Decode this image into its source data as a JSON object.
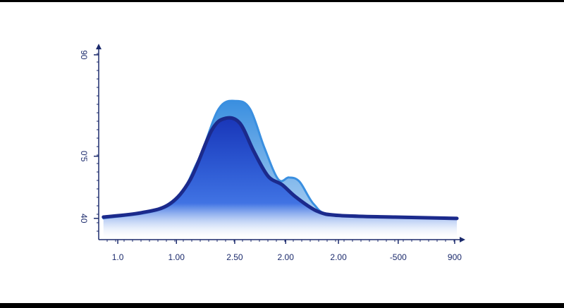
{
  "chart_data": {
    "type": "area",
    "xlim": [
      0,
      100
    ],
    "xticks": [
      {
        "value": 5.2,
        "label": "1.0"
      },
      {
        "value": 21.2,
        "label": "1.00"
      },
      {
        "value": 37.1,
        "label": "2.50"
      },
      {
        "value": 51,
        "label": "2.00"
      },
      {
        "value": 65.4,
        "label": "2.00"
      },
      {
        "value": 81.7,
        "label": "-500"
      },
      {
        "value": 97.1,
        "label": "900"
      }
    ],
    "ylim": [
      33.5,
      93.4
    ],
    "yticks": [
      40,
      {
        "value": 59,
        "label": "0'5"
      },
      90
    ],
    "series": [
      {
        "color": "#3a8fe0",
        "x": [
          1.3,
          19.2,
          26.9,
          32.7,
          37.5,
          41.3,
          45.2,
          49,
          51.9,
          54.8,
          58.7,
          63.5,
          80.8,
          97.7
        ],
        "values": [
          40,
          43.9,
          57.2,
          73.4,
          75.9,
          73.4,
          61.6,
          51.9,
          52.5,
          51.2,
          44.3,
          41.1,
          40.2,
          40
        ]
      },
      {
        "color": "#1b2a8c",
        "x": [
          1.3,
          11.5,
          19.2,
          25,
          30.8,
          34.6,
          38.5,
          42.3,
          46.2,
          50,
          53.8,
          59.6,
          65.4,
          80.8,
          97.7
        ],
        "values": [
          40.4,
          41.7,
          44.3,
          51.9,
          66.9,
          70.6,
          69.1,
          60.5,
          52.9,
          50.3,
          46.5,
          42.2,
          40.9,
          40.4,
          40
        ]
      }
    ]
  }
}
